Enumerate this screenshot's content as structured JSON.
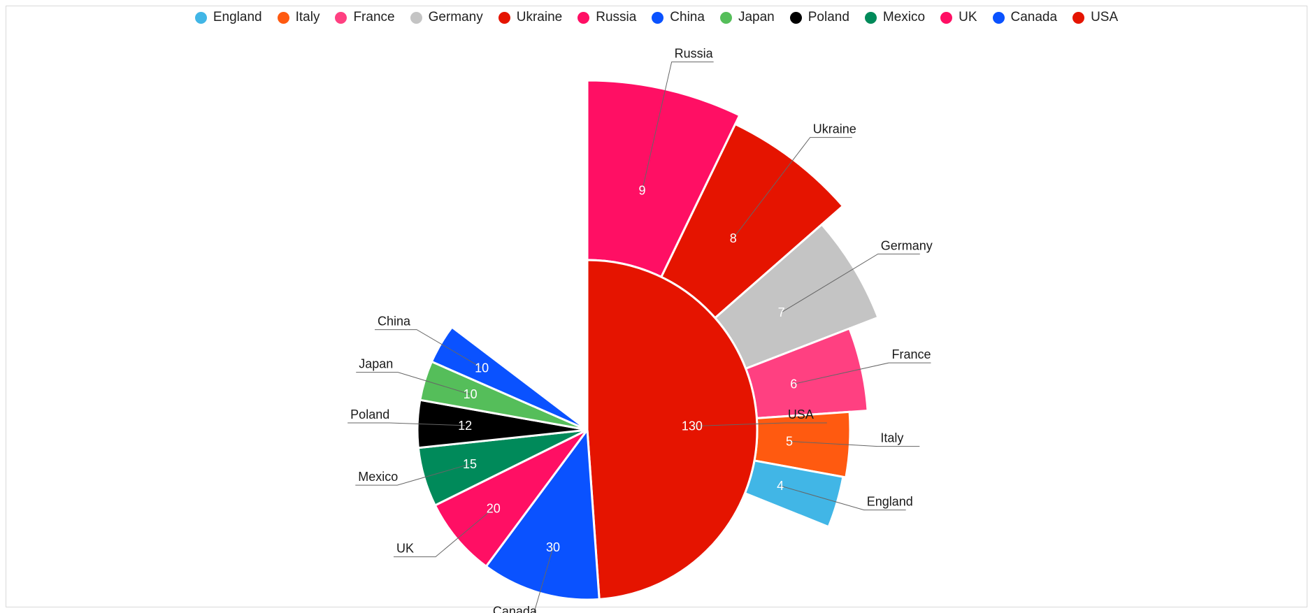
{
  "chart_data": {
    "type": "pie",
    "title": "",
    "legend_position": "top",
    "categories": [
      "England",
      "Italy",
      "France",
      "Germany",
      "Ukraine",
      "Russia",
      "China",
      "Japan",
      "Poland",
      "Mexico",
      "UK",
      "Canada",
      "USA"
    ],
    "values": [
      4,
      5,
      6,
      7,
      8,
      9,
      10,
      10,
      12,
      15,
      20,
      30,
      130
    ],
    "colors": [
      "#41b6e6",
      "#ff5a10",
      "#ff4081",
      "#c4c4c4",
      "#e51400",
      "#ff0f64",
      "#0a52ff",
      "#55be5a",
      "#000000",
      "#008a5a",
      "#ff0f64",
      "#0a52ff",
      "#e51400"
    ]
  }
}
